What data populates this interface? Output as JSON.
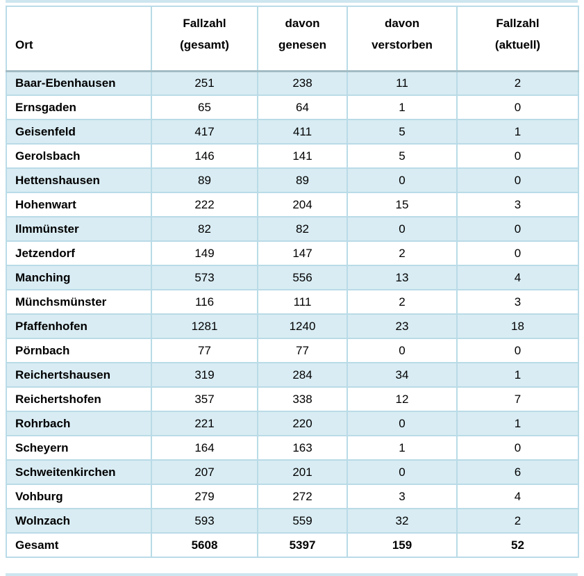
{
  "table": {
    "columns": [
      {
        "key": "ort",
        "line1": "Ort",
        "line2": ""
      },
      {
        "key": "fallzahl-gesamt",
        "line1": "Fallzahl",
        "line2": "(gesamt)"
      },
      {
        "key": "davon-genesen",
        "line1": "davon",
        "line2": "genesen"
      },
      {
        "key": "davon-verstorben",
        "line1": "davon",
        "line2": "verstorben"
      },
      {
        "key": "fallzahl-aktuell",
        "line1": "Fallzahl",
        "line2": "(aktuell)"
      }
    ],
    "rows": [
      [
        "Baar-Ebenhausen",
        "251",
        "238",
        "11",
        "2"
      ],
      [
        "Ernsgaden",
        "65",
        "64",
        "1",
        "0"
      ],
      [
        "Geisenfeld",
        "417",
        "411",
        "5",
        "1"
      ],
      [
        "Gerolsbach",
        "146",
        "141",
        "5",
        "0"
      ],
      [
        "Hettenshausen",
        "89",
        "89",
        "0",
        "0"
      ],
      [
        "Hohenwart",
        "222",
        "204",
        "15",
        "3"
      ],
      [
        "Ilmmünster",
        "82",
        "82",
        "0",
        "0"
      ],
      [
        "Jetzendorf",
        "149",
        "147",
        "2",
        "0"
      ],
      [
        "Manching",
        "573",
        "556",
        "13",
        "4"
      ],
      [
        "Münchsmünster",
        "116",
        "111",
        "2",
        "3"
      ],
      [
        "Pfaffenhofen",
        "1281",
        "1240",
        "23",
        "18"
      ],
      [
        "Pörnbach",
        "77",
        "77",
        "0",
        "0"
      ],
      [
        "Reichertshausen",
        "319",
        "284",
        "34",
        "1"
      ],
      [
        "Reichertshofen",
        "357",
        "338",
        "12",
        "7"
      ],
      [
        "Rohrbach",
        "221",
        "220",
        "0",
        "1"
      ],
      [
        "Scheyern",
        "164",
        "163",
        "1",
        "0"
      ],
      [
        "Schweitenkirchen",
        "207",
        "201",
        "0",
        "6"
      ],
      [
        "Vohburg",
        "279",
        "272",
        "3",
        "4"
      ],
      [
        "Wolnzach",
        "593",
        "559",
        "32",
        "2"
      ]
    ],
    "total_row": [
      "Gesamt",
      "5608",
      "5397",
      "159",
      "52"
    ],
    "colors": {
      "zebra_row_blue": "#d9ecf3",
      "cell_border": "#b9dbe7",
      "header_separator": "#a3bcc4",
      "edge_strip": "#cde6ef",
      "text": "#000000"
    }
  }
}
